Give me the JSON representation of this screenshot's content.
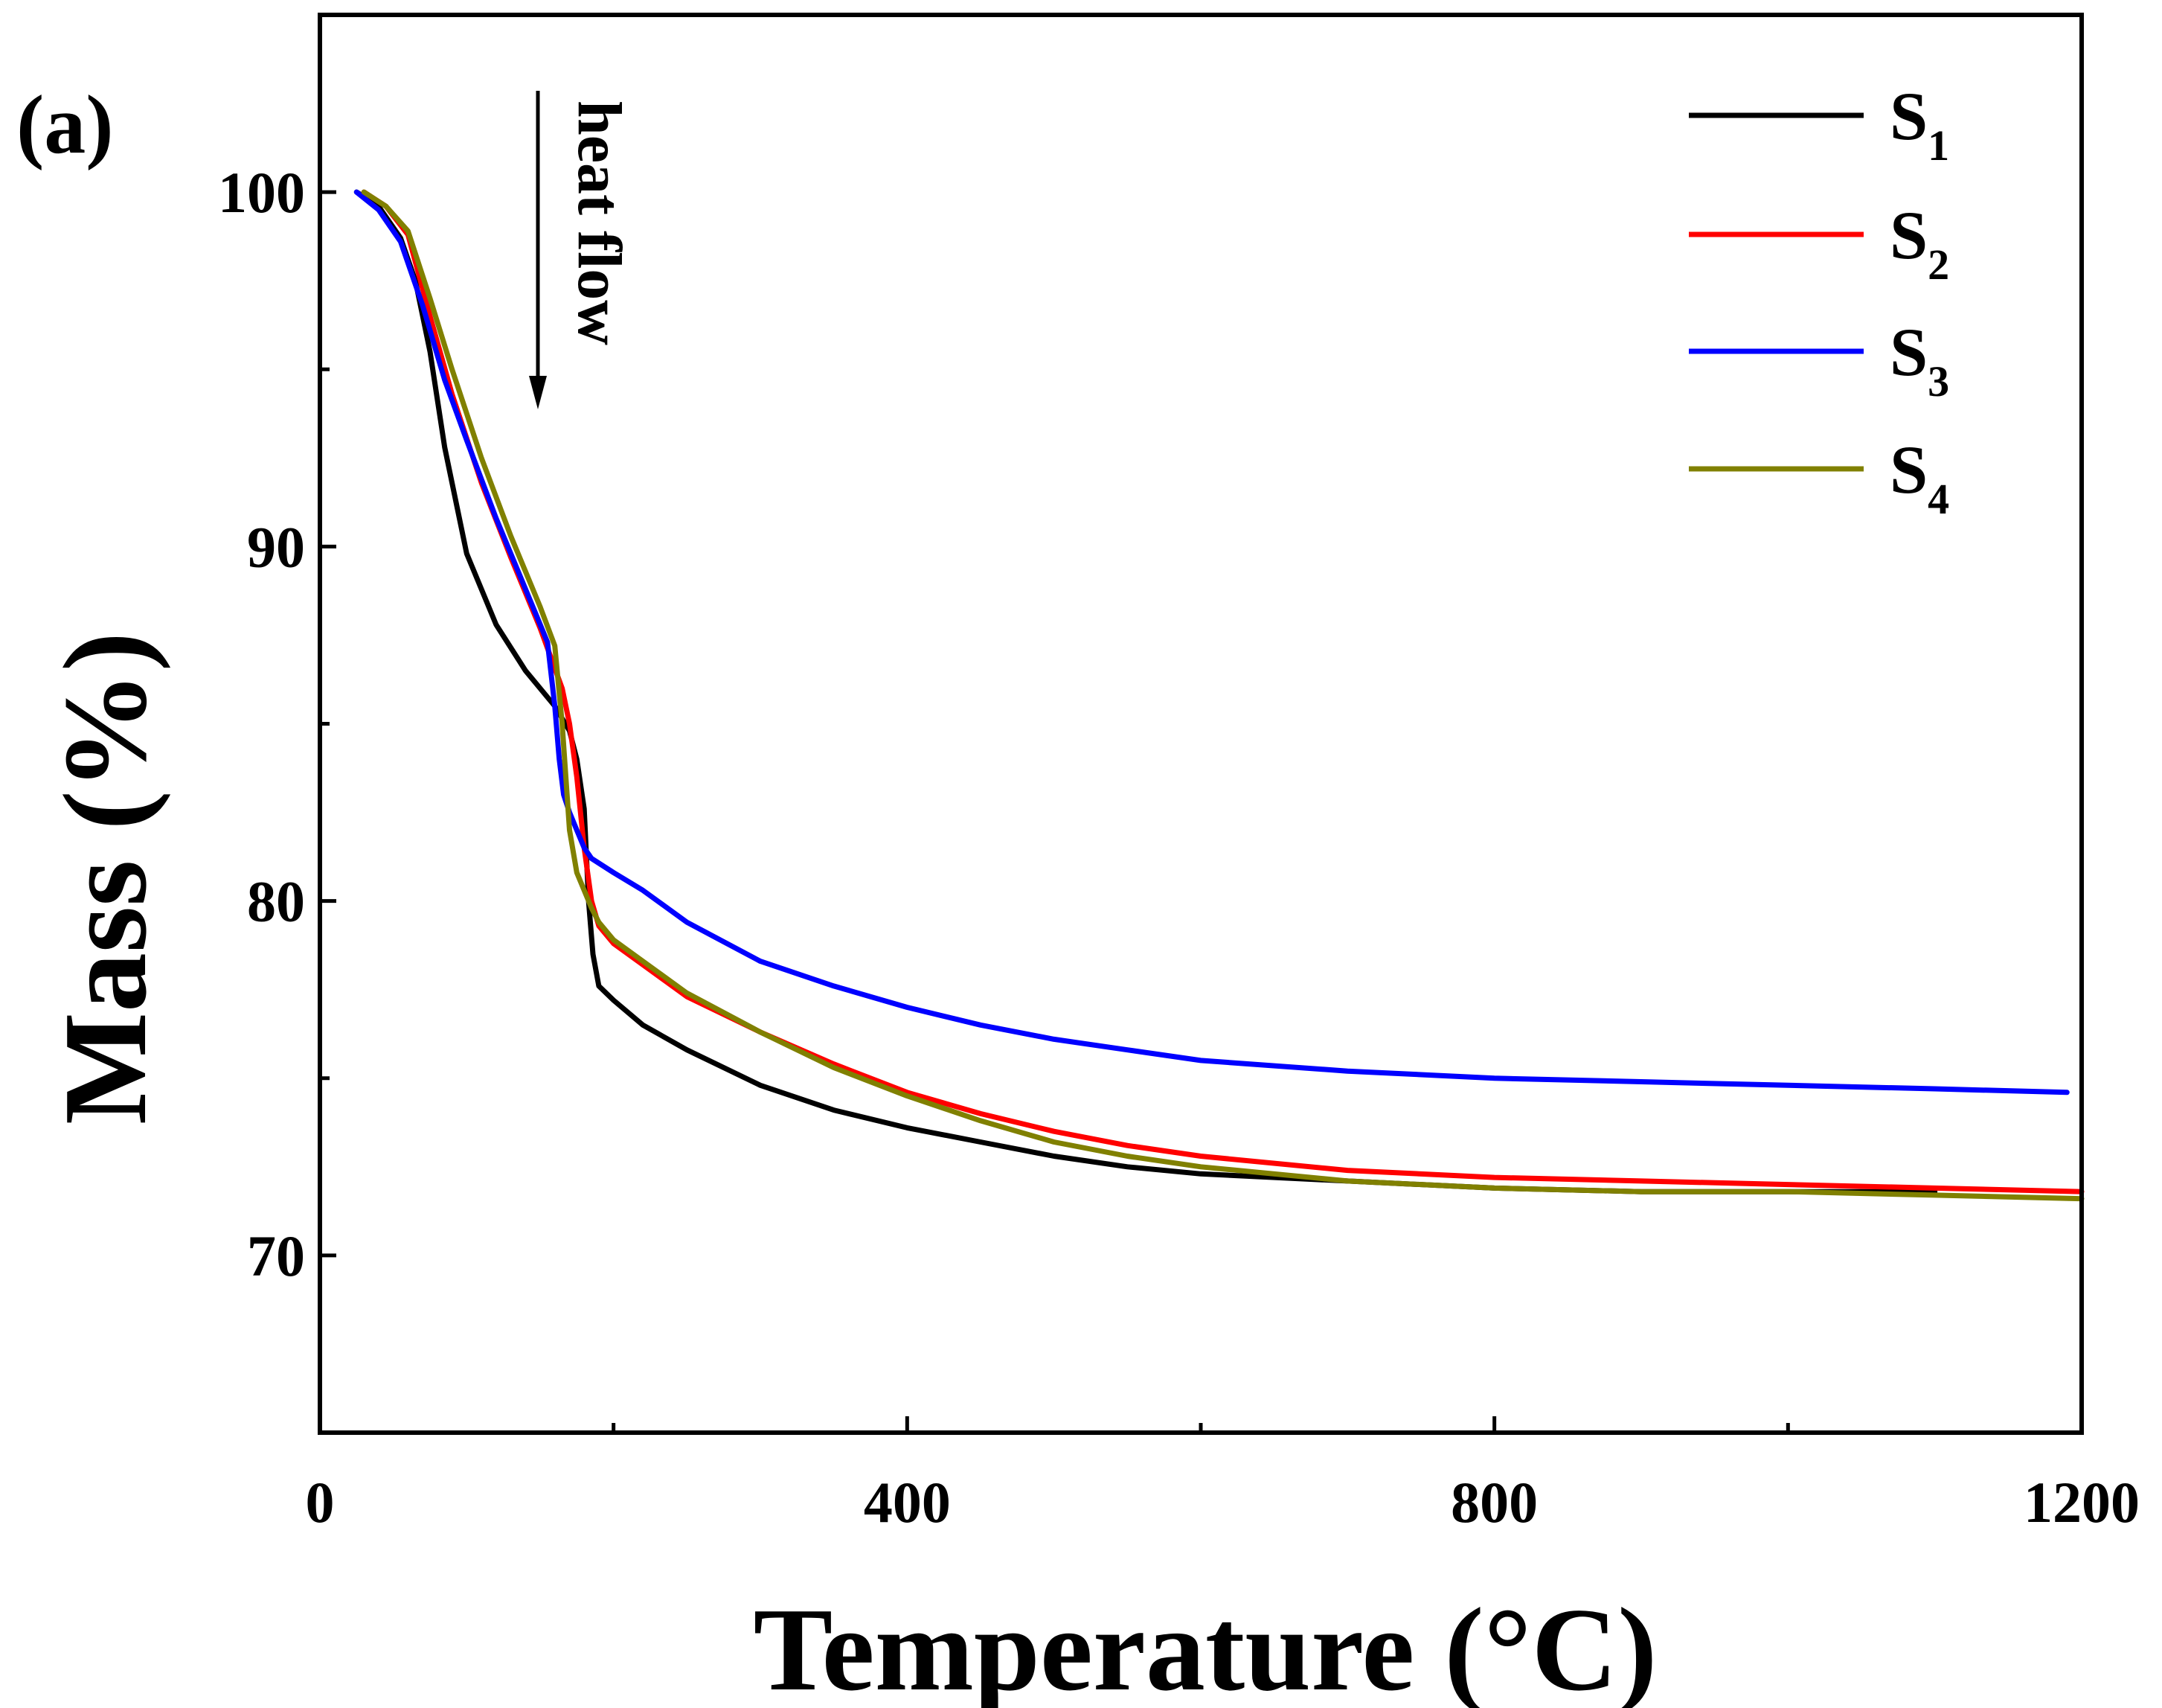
{
  "chart_data": {
    "type": "line",
    "panel_label": "(a)",
    "xlabel": "Temperature (°C)",
    "ylabel": "Mass (%)",
    "xlim": [
      0,
      1200
    ],
    "ylim": [
      65,
      105
    ],
    "xticks": [
      0,
      400,
      800,
      1200
    ],
    "yticks": [
      70,
      80,
      90,
      100
    ],
    "x_minor_ticks": [
      200,
      600,
      1000
    ],
    "y_minor_ticks": [
      75,
      85,
      95
    ],
    "grid": false,
    "legend_position": "top-right",
    "annotation": "heat flow",
    "series": [
      {
        "name": "S1",
        "base": "S",
        "sub": "1",
        "color": "#000000",
        "x": [
          25,
          40,
          55,
          65,
          75,
          85,
          100,
          120,
          140,
          160,
          170,
          175,
          180,
          183,
          186,
          190,
          200,
          220,
          250,
          300,
          350,
          400,
          450,
          500,
          550,
          600,
          700,
          800,
          900,
          1000,
          1100
        ],
        "y": [
          100,
          99.6,
          98.7,
          97.5,
          95.5,
          92.8,
          89.8,
          87.8,
          86.5,
          85.5,
          84.8,
          84.0,
          82.6,
          80.0,
          78.5,
          77.6,
          77.2,
          76.5,
          75.8,
          74.8,
          74.1,
          73.6,
          73.2,
          72.8,
          72.5,
          72.3,
          72.1,
          71.9,
          71.8,
          71.8,
          71.8
        ]
      },
      {
        "name": "S2",
        "base": "S",
        "sub": "2",
        "color": "#ff0000",
        "x": [
          30,
          45,
          60,
          75,
          90,
          110,
          130,
          150,
          165,
          170,
          175,
          180,
          185,
          190,
          200,
          220,
          250,
          300,
          350,
          400,
          450,
          500,
          550,
          600,
          700,
          800,
          900,
          1000,
          1100,
          1200
        ],
        "y": [
          100,
          99.6,
          98.8,
          96.5,
          94.3,
          91.8,
          89.7,
          87.7,
          86.0,
          85.0,
          83.5,
          81.5,
          80.0,
          79.3,
          78.8,
          78.2,
          77.3,
          76.3,
          75.4,
          74.6,
          74.0,
          73.5,
          73.1,
          72.8,
          72.4,
          72.2,
          72.1,
          72.0,
          71.9,
          71.8
        ]
      },
      {
        "name": "S3",
        "base": "S",
        "sub": "3",
        "color": "#0000ff",
        "x": [
          25,
          40,
          55,
          70,
          85,
          100,
          120,
          140,
          155,
          160,
          163,
          166,
          170,
          175,
          180,
          185,
          200,
          220,
          250,
          300,
          350,
          400,
          450,
          500,
          550,
          600,
          700,
          800,
          900,
          1000,
          1100,
          1190
        ],
        "y": [
          100,
          99.5,
          98.6,
          96.8,
          94.7,
          93.0,
          90.8,
          88.8,
          87.3,
          85.5,
          84.0,
          83.0,
          82.5,
          82.0,
          81.5,
          81.2,
          80.8,
          80.3,
          79.4,
          78.3,
          77.6,
          77.0,
          76.5,
          76.1,
          75.8,
          75.5,
          75.2,
          75.0,
          74.9,
          74.8,
          74.7,
          74.6
        ]
      },
      {
        "name": "S4",
        "base": "S",
        "sub": "4",
        "color": "#808000",
        "x": [
          30,
          45,
          60,
          75,
          90,
          110,
          130,
          150,
          160,
          165,
          170,
          175,
          180,
          185,
          190,
          200,
          220,
          250,
          300,
          350,
          400,
          450,
          500,
          550,
          600,
          700,
          800,
          900,
          1000,
          1100,
          1200
        ],
        "y": [
          100,
          99.6,
          98.9,
          97.0,
          95.0,
          92.5,
          90.3,
          88.3,
          87.2,
          85.0,
          82.0,
          80.8,
          80.3,
          79.8,
          79.4,
          78.9,
          78.3,
          77.4,
          76.3,
          75.3,
          74.5,
          73.8,
          73.2,
          72.8,
          72.5,
          72.1,
          71.9,
          71.8,
          71.8,
          71.7,
          71.6
        ]
      }
    ]
  }
}
